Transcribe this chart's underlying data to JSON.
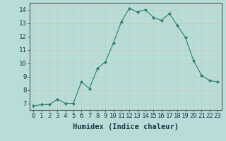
{
  "x": [
    0,
    1,
    2,
    3,
    4,
    5,
    6,
    7,
    8,
    9,
    10,
    11,
    12,
    13,
    14,
    15,
    16,
    17,
    18,
    19,
    20,
    21,
    22,
    23
  ],
  "y": [
    6.8,
    6.9,
    6.9,
    7.3,
    7.0,
    7.0,
    8.6,
    8.1,
    9.6,
    10.1,
    11.5,
    13.1,
    14.1,
    13.8,
    14.0,
    13.4,
    13.2,
    13.7,
    12.8,
    11.9,
    10.2,
    9.1,
    8.7,
    8.6
  ],
  "xlabel": "Humidex (Indice chaleur)",
  "ylim": [
    6.5,
    14.5
  ],
  "xlim": [
    -0.5,
    23.5
  ],
  "yticks": [
    7,
    8,
    9,
    10,
    11,
    12,
    13,
    14
  ],
  "xticks": [
    0,
    1,
    2,
    3,
    4,
    5,
    6,
    7,
    8,
    9,
    10,
    11,
    12,
    13,
    14,
    15,
    16,
    17,
    18,
    19,
    20,
    21,
    22,
    23
  ],
  "line_color": "#2e7d6e",
  "marker_color": "#2e7d6e",
  "bg_color": "#b8ddd8",
  "grid_color": "#c8c8b8",
  "xlabel_fontsize": 7.5,
  "tick_fontsize": 6.5
}
